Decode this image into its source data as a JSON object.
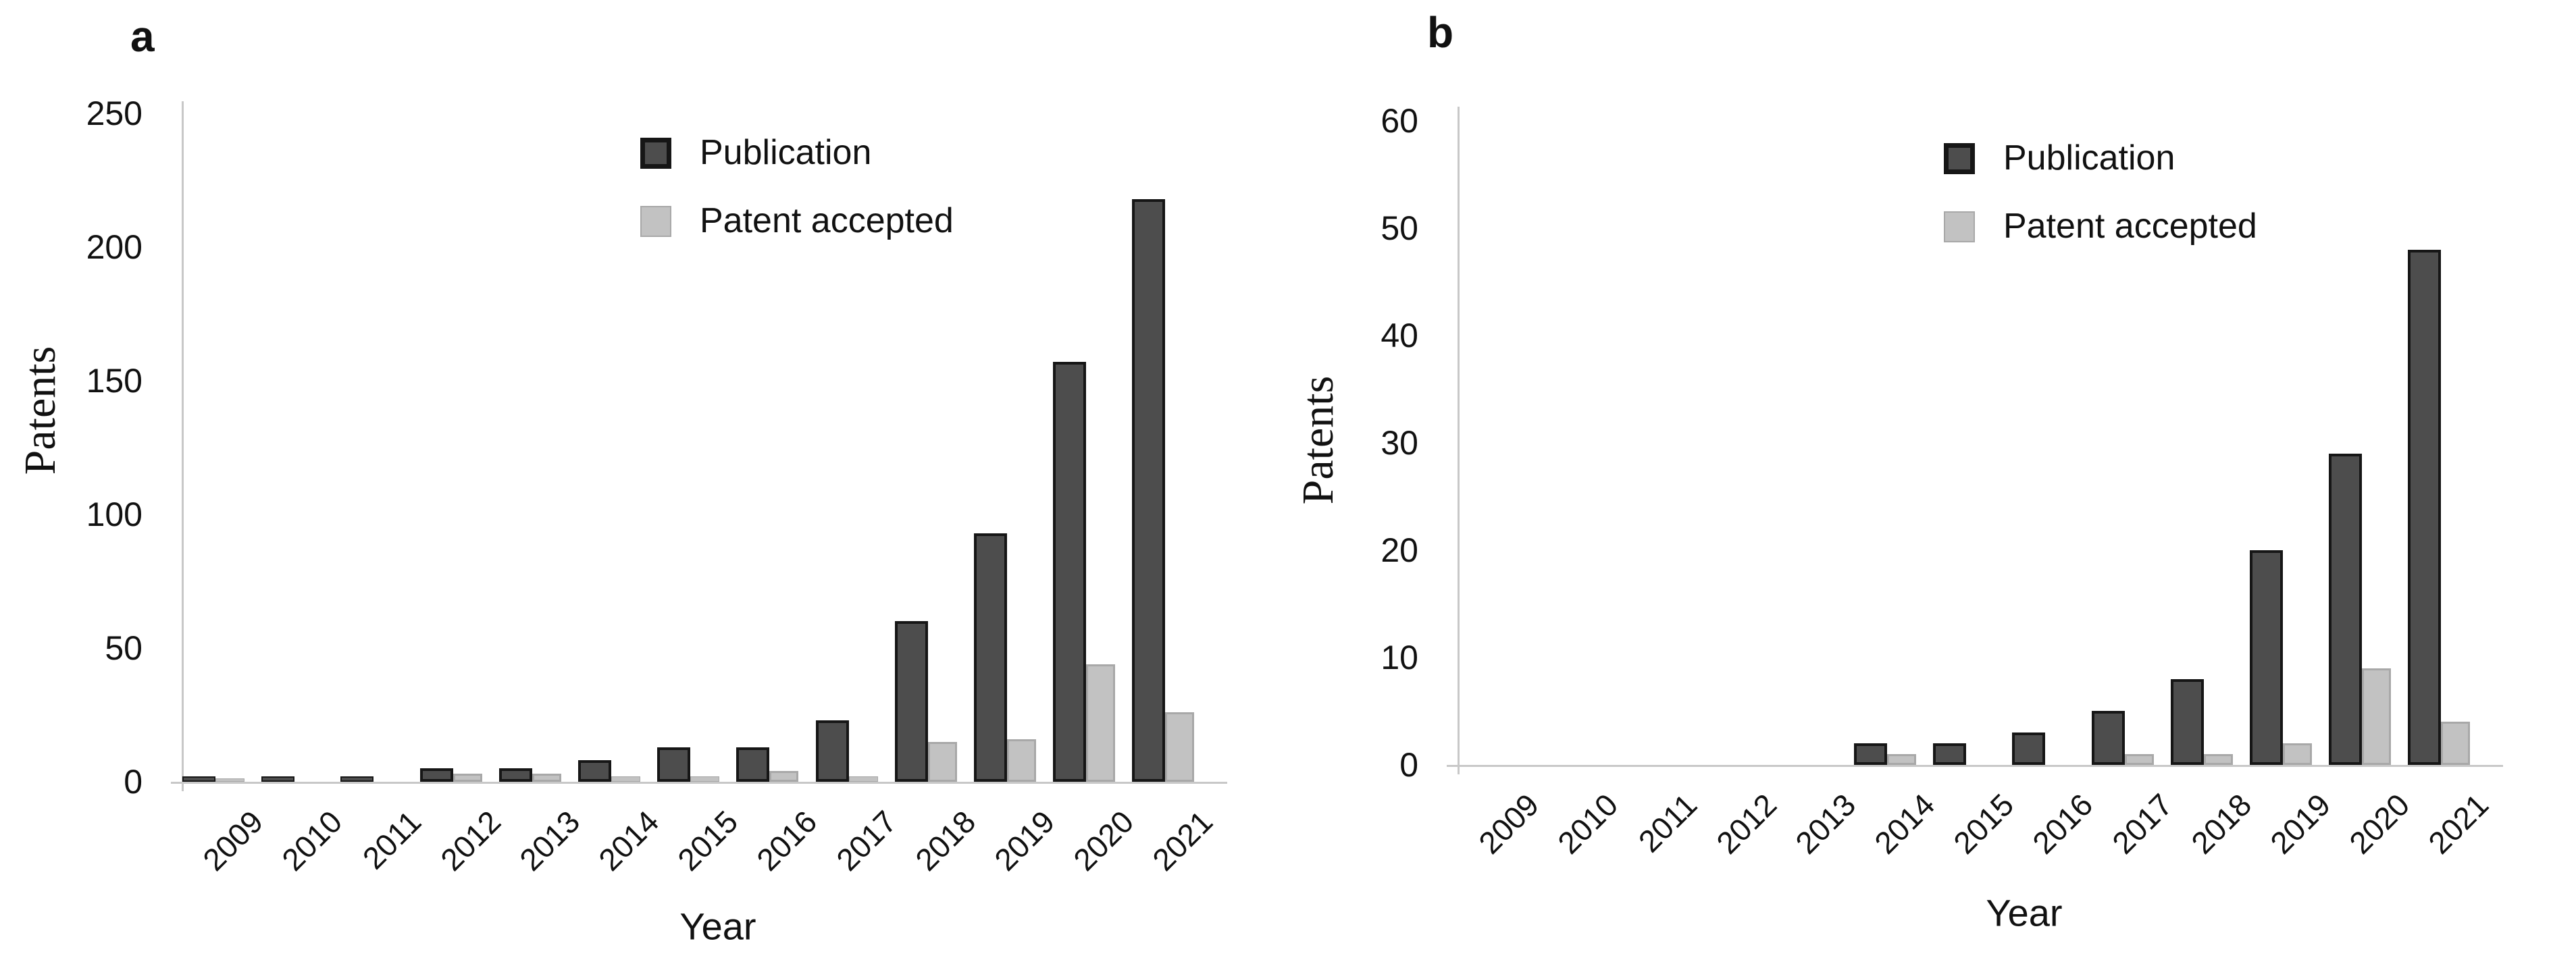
{
  "figure_background": "#ffffff",
  "colors": {
    "publication_fill": "#4d4d4d",
    "publication_border": "#161616",
    "accepted_fill": "#c2c2c2",
    "accepted_border": "#a8a8a8",
    "axis_line": "#c8c8c8",
    "text": "#111111"
  },
  "chart_data": [
    {
      "type": "bar",
      "panel_label": "a",
      "xlabel": "Year",
      "ylabel": "Patents",
      "ylim": [
        0,
        250
      ],
      "yticks": [
        0,
        50,
        100,
        150,
        200,
        250
      ],
      "grid": false,
      "legend_position": "upper-center-inside",
      "categories": [
        "2009",
        "2010",
        "2011",
        "2012",
        "2013",
        "2014",
        "2015",
        "2016",
        "2017",
        "2018",
        "2019",
        "2020",
        "2021"
      ],
      "series": [
        {
          "name": "Publication",
          "color": "#4d4d4d",
          "border": "#161616",
          "values": [
            1,
            1,
            1,
            5,
            5,
            8,
            13,
            13,
            23,
            60,
            93,
            157,
            218
          ]
        },
        {
          "name": "Patent accepted",
          "color": "#c2c2c2",
          "border": "#a8a8a8",
          "values": [
            1,
            0,
            0,
            3,
            3,
            2,
            2,
            4,
            2,
            15,
            16,
            44,
            26
          ]
        }
      ]
    },
    {
      "type": "bar",
      "panel_label": "b",
      "xlabel": "Year",
      "ylabel": "Patents",
      "ylim": [
        0,
        60
      ],
      "yticks": [
        0,
        10,
        20,
        30,
        40,
        50,
        60
      ],
      "grid": false,
      "legend_position": "upper-center-inside",
      "categories": [
        "2009",
        "2010",
        "2011",
        "2012",
        "2013",
        "2014",
        "2015",
        "2016",
        "2017",
        "2018",
        "2019",
        "2020",
        "2021"
      ],
      "series": [
        {
          "name": "Publication",
          "color": "#4d4d4d",
          "border": "#161616",
          "values": [
            0,
            0,
            0,
            0,
            0,
            2,
            2,
            3,
            5,
            8,
            20,
            29,
            48
          ]
        },
        {
          "name": "Patent accepted",
          "color": "#c2c2c2",
          "border": "#a8a8a8",
          "values": [
            0,
            0,
            0,
            0,
            0,
            1,
            0,
            0,
            1,
            1,
            2,
            9,
            4
          ]
        }
      ]
    }
  ]
}
